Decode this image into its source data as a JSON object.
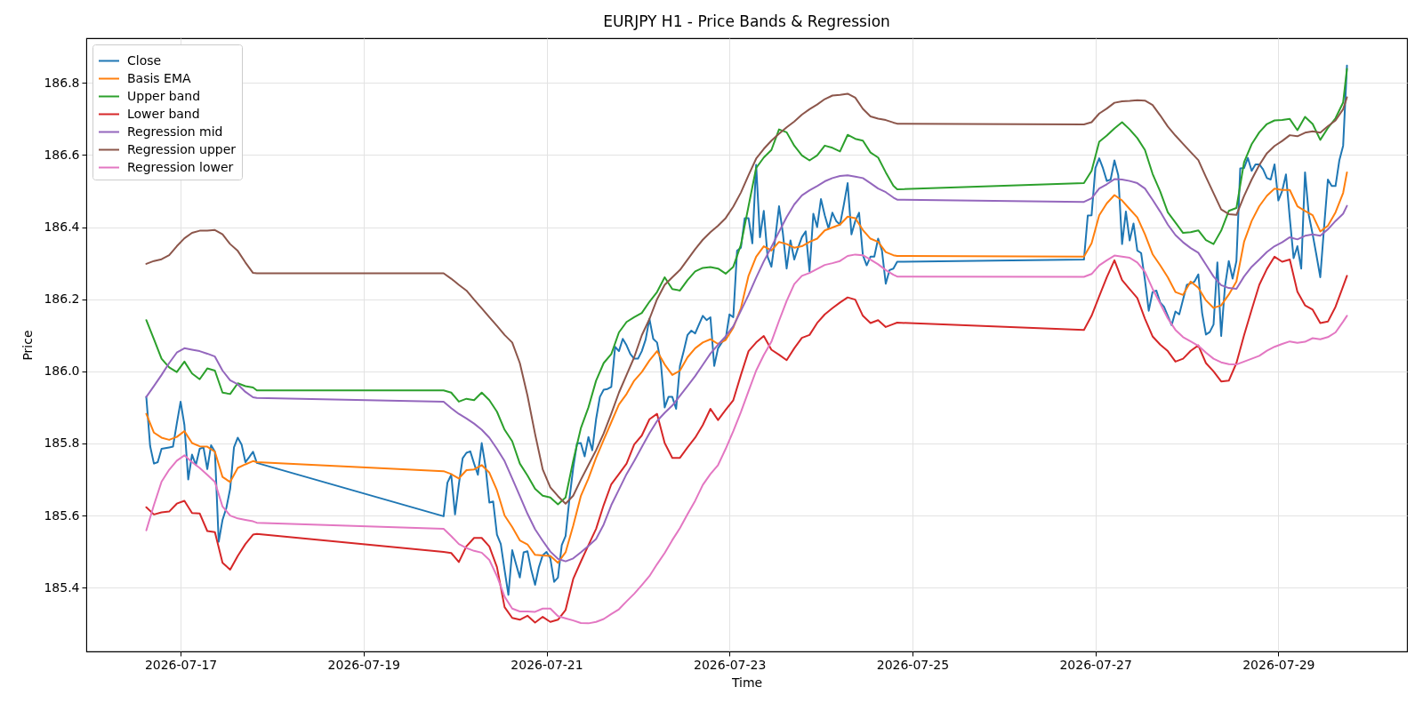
{
  "chart_data": {
    "type": "line",
    "title": "EURJPY H1 - Price Bands & Regression",
    "xlabel": "Time",
    "ylabel": "Price",
    "xlim": [
      "2026-07-15T23:15",
      "2026-07-30T09:45"
    ],
    "ylim": [
      185.223,
      186.924
    ],
    "xticks": [
      "2026-07-17",
      "2026-07-19",
      "2026-07-21",
      "2026-07-23",
      "2026-07-25",
      "2026-07-27",
      "2026-07-29"
    ],
    "yticks": [
      185.4,
      185.6,
      185.8,
      {
        "value": 186.0,
        "label": "186.0"
      },
      186.2,
      186.4,
      186.6,
      186.8
    ],
    "grid": true,
    "legend": "top left",
    "x": [
      "2026-07-16T15:00",
      "2026-07-16T17:00",
      "2026-07-16T19:00",
      "2026-07-16T21:00",
      "2026-07-16T23:00",
      "2026-07-17T01:00",
      "2026-07-17T03:00",
      "2026-07-17T05:00",
      "2026-07-17T07:00",
      "2026-07-17T09:00",
      "2026-07-17T11:00",
      "2026-07-17T13:00",
      "2026-07-17T15:00",
      "2026-07-17T17:00",
      "2026-07-17T19:00",
      "2026-07-17T20:00",
      "2026-07-19T21:00",
      "2026-07-19T23:00",
      "2026-07-20T01:00",
      "2026-07-20T03:00",
      "2026-07-20T05:00",
      "2026-07-20T07:00",
      "2026-07-20T09:00",
      "2026-07-20T11:00",
      "2026-07-20T13:00",
      "2026-07-20T15:00",
      "2026-07-20T17:00",
      "2026-07-20T19:00",
      "2026-07-20T21:00",
      "2026-07-20T23:00",
      "2026-07-21T01:00",
      "2026-07-21T03:00",
      "2026-07-21T05:00",
      "2026-07-21T07:00",
      "2026-07-21T09:00",
      "2026-07-21T11:00",
      "2026-07-21T13:00",
      "2026-07-21T15:00",
      "2026-07-21T17:00",
      "2026-07-21T19:00",
      "2026-07-21T21:00",
      "2026-07-21T23:00",
      "2026-07-22T01:00",
      "2026-07-22T03:00",
      "2026-07-22T05:00",
      "2026-07-22T07:00",
      "2026-07-22T09:00",
      "2026-07-22T11:00",
      "2026-07-22T13:00",
      "2026-07-22T15:00",
      "2026-07-22T17:00",
      "2026-07-22T19:00",
      "2026-07-22T21:00",
      "2026-07-22T23:00",
      "2026-07-23T01:00",
      "2026-07-23T03:00",
      "2026-07-23T05:00",
      "2026-07-23T07:00",
      "2026-07-23T09:00",
      "2026-07-23T11:00",
      "2026-07-23T13:00",
      "2026-07-23T15:00",
      "2026-07-23T17:00",
      "2026-07-23T19:00",
      "2026-07-23T21:00",
      "2026-07-23T23:00",
      "2026-07-24T01:00",
      "2026-07-24T03:00",
      "2026-07-24T05:00",
      "2026-07-24T07:00",
      "2026-07-24T09:00",
      "2026-07-24T11:00",
      "2026-07-24T13:00",
      "2026-07-24T15:00",
      "2026-07-24T17:00",
      "2026-07-24T19:00",
      "2026-07-24T20:00",
      "2026-07-26T21:00",
      "2026-07-26T23:00",
      "2026-07-27T01:00",
      "2026-07-27T03:00",
      "2026-07-27T05:00",
      "2026-07-27T07:00",
      "2026-07-27T09:00",
      "2026-07-27T11:00",
      "2026-07-27T13:00",
      "2026-07-27T15:00",
      "2026-07-27T17:00",
      "2026-07-27T19:00",
      "2026-07-27T21:00",
      "2026-07-27T23:00",
      "2026-07-28T01:00",
      "2026-07-28T03:00",
      "2026-07-28T05:00",
      "2026-07-28T07:00",
      "2026-07-28T09:00",
      "2026-07-28T11:00",
      "2026-07-28T13:00",
      "2026-07-28T15:00",
      "2026-07-28T17:00",
      "2026-07-28T19:00",
      "2026-07-28T21:00",
      "2026-07-28T23:00",
      "2026-07-29T01:00",
      "2026-07-29T03:00",
      "2026-07-29T05:00",
      "2026-07-29T07:00",
      "2026-07-29T09:00",
      "2026-07-29T11:00",
      "2026-07-29T13:00",
      "2026-07-29T15:00",
      "2026-07-29T17:00",
      "2026-07-29T18:00"
    ],
    "series": [
      {
        "name": "Close",
        "color": "#1f77b4",
        "x": [
          "2026-07-16T15:00",
          "2026-07-16T16:00",
          "2026-07-16T17:00",
          "2026-07-16T18:00",
          "2026-07-16T19:00",
          "2026-07-16T20:00",
          "2026-07-16T21:00",
          "2026-07-16T22:00",
          "2026-07-16T23:00",
          "2026-07-17T00:00",
          "2026-07-17T01:00",
          "2026-07-17T02:00",
          "2026-07-17T03:00",
          "2026-07-17T04:00",
          "2026-07-17T05:00",
          "2026-07-17T06:00",
          "2026-07-17T07:00",
          "2026-07-17T08:00",
          "2026-07-17T09:00",
          "2026-07-17T10:00",
          "2026-07-17T11:00",
          "2026-07-17T12:00",
          "2026-07-17T13:00",
          "2026-07-17T14:00",
          "2026-07-17T15:00",
          "2026-07-17T16:00",
          "2026-07-17T17:00",
          "2026-07-17T18:00",
          "2026-07-17T19:00",
          "2026-07-17T20:00",
          "2026-07-19T21:00",
          "2026-07-19T22:00",
          "2026-07-19T23:00",
          "2026-07-20T00:00",
          "2026-07-20T01:00",
          "2026-07-20T02:00",
          "2026-07-20T03:00",
          "2026-07-20T04:00",
          "2026-07-20T05:00",
          "2026-07-20T06:00",
          "2026-07-20T07:00",
          "2026-07-20T08:00",
          "2026-07-20T09:00",
          "2026-07-20T10:00",
          "2026-07-20T11:00",
          "2026-07-20T12:00",
          "2026-07-20T13:00",
          "2026-07-20T14:00",
          "2026-07-20T15:00",
          "2026-07-20T16:00",
          "2026-07-20T17:00",
          "2026-07-20T18:00",
          "2026-07-20T19:00",
          "2026-07-20T20:00",
          "2026-07-20T21:00",
          "2026-07-20T22:00",
          "2026-07-20T23:00",
          "2026-07-21T00:00",
          "2026-07-21T01:00",
          "2026-07-21T02:00",
          "2026-07-21T03:00",
          "2026-07-21T04:00",
          "2026-07-21T05:00",
          "2026-07-21T06:00",
          "2026-07-21T07:00",
          "2026-07-21T08:00",
          "2026-07-21T09:00",
          "2026-07-21T10:00",
          "2026-07-21T11:00",
          "2026-07-21T12:00",
          "2026-07-21T13:00",
          "2026-07-21T14:00",
          "2026-07-21T15:00",
          "2026-07-21T16:00",
          "2026-07-21T17:00",
          "2026-07-21T18:00",
          "2026-07-21T19:00",
          "2026-07-21T20:00",
          "2026-07-21T21:00",
          "2026-07-21T22:00",
          "2026-07-21T23:00",
          "2026-07-22T00:00",
          "2026-07-22T01:00",
          "2026-07-22T02:00",
          "2026-07-22T03:00",
          "2026-07-22T04:00",
          "2026-07-22T05:00",
          "2026-07-22T06:00",
          "2026-07-22T07:00",
          "2026-07-22T08:00",
          "2026-07-22T09:00",
          "2026-07-22T10:00",
          "2026-07-22T11:00",
          "2026-07-22T12:00",
          "2026-07-22T13:00",
          "2026-07-22T14:00",
          "2026-07-22T15:00",
          "2026-07-22T16:00",
          "2026-07-22T17:00",
          "2026-07-22T18:00",
          "2026-07-22T19:00",
          "2026-07-22T20:00",
          "2026-07-22T21:00",
          "2026-07-22T22:00",
          "2026-07-22T23:00",
          "2026-07-23T00:00",
          "2026-07-23T01:00",
          "2026-07-23T02:00",
          "2026-07-23T03:00",
          "2026-07-23T04:00",
          "2026-07-23T05:00",
          "2026-07-23T06:00",
          "2026-07-23T07:00",
          "2026-07-23T08:00",
          "2026-07-23T09:00",
          "2026-07-23T10:00",
          "2026-07-23T11:00",
          "2026-07-23T12:00",
          "2026-07-23T13:00",
          "2026-07-23T14:00",
          "2026-07-23T15:00",
          "2026-07-23T16:00",
          "2026-07-23T17:00",
          "2026-07-23T18:00",
          "2026-07-23T19:00",
          "2026-07-23T20:00",
          "2026-07-23T21:00",
          "2026-07-23T22:00",
          "2026-07-23T23:00",
          "2026-07-24T00:00",
          "2026-07-24T01:00",
          "2026-07-24T02:00",
          "2026-07-24T03:00",
          "2026-07-24T04:00",
          "2026-07-24T05:00",
          "2026-07-24T06:00",
          "2026-07-24T07:00",
          "2026-07-24T08:00",
          "2026-07-24T09:00",
          "2026-07-24T10:00",
          "2026-07-24T11:00",
          "2026-07-24T12:00",
          "2026-07-24T13:00",
          "2026-07-24T14:00",
          "2026-07-24T15:00",
          "2026-07-24T16:00",
          "2026-07-24T17:00",
          "2026-07-24T18:00",
          "2026-07-24T19:00",
          "2026-07-24T20:00",
          "2026-07-26T21:00",
          "2026-07-26T22:00",
          "2026-07-26T23:00",
          "2026-07-27T00:00",
          "2026-07-27T01:00",
          "2026-07-27T02:00",
          "2026-07-27T03:00",
          "2026-07-27T04:00",
          "2026-07-27T05:00",
          "2026-07-27T06:00",
          "2026-07-27T07:00",
          "2026-07-27T08:00",
          "2026-07-27T09:00",
          "2026-07-27T10:00",
          "2026-07-27T11:00",
          "2026-07-27T12:00",
          "2026-07-27T13:00",
          "2026-07-27T14:00",
          "2026-07-27T15:00",
          "2026-07-27T16:00",
          "2026-07-27T17:00",
          "2026-07-27T18:00",
          "2026-07-27T19:00",
          "2026-07-27T20:00",
          "2026-07-27T21:00",
          "2026-07-27T22:00",
          "2026-07-27T23:00",
          "2026-07-28T00:00",
          "2026-07-28T01:00",
          "2026-07-28T02:00",
          "2026-07-28T03:00",
          "2026-07-28T04:00",
          "2026-07-28T05:00",
          "2026-07-28T06:00",
          "2026-07-28T07:00",
          "2026-07-28T08:00",
          "2026-07-28T09:00",
          "2026-07-28T10:00",
          "2026-07-28T11:00",
          "2026-07-28T12:00",
          "2026-07-28T13:00",
          "2026-07-28T14:00",
          "2026-07-28T15:00",
          "2026-07-28T16:00",
          "2026-07-28T17:00",
          "2026-07-28T18:00",
          "2026-07-28T19:00",
          "2026-07-28T20:00",
          "2026-07-28T21:00",
          "2026-07-28T22:00",
          "2026-07-28T23:00",
          "2026-07-29T00:00",
          "2026-07-29T01:00",
          "2026-07-29T02:00",
          "2026-07-29T03:00",
          "2026-07-29T04:00",
          "2026-07-29T05:00",
          "2026-07-29T06:00",
          "2026-07-29T07:00",
          "2026-07-29T08:00",
          "2026-07-29T09:00",
          "2026-07-29T10:00",
          "2026-07-29T11:00",
          "2026-07-29T12:00",
          "2026-07-29T13:00",
          "2026-07-29T14:00",
          "2026-07-29T15:00",
          "2026-07-29T16:00",
          "2026-07-29T17:00",
          "2026-07-29T18:00"
        ],
        "values": [
          185.929,
          185.793,
          185.744,
          185.748,
          185.785,
          185.787,
          185.789,
          185.791,
          185.855,
          185.916,
          185.851,
          185.7,
          185.769,
          185.74,
          185.785,
          185.789,
          185.729,
          185.795,
          185.777,
          185.527,
          185.588,
          185.621,
          185.674,
          185.789,
          185.816,
          185.797,
          185.748,
          185.762,
          185.777,
          185.746,
          185.598,
          185.691,
          185.713,
          185.603,
          185.687,
          185.759,
          185.774,
          185.778,
          185.744,
          185.713,
          185.801,
          185.736,
          185.636,
          185.639,
          185.547,
          185.521,
          185.449,
          185.38,
          185.504,
          185.465,
          185.428,
          185.498,
          185.501,
          185.449,
          185.408,
          185.457,
          185.49,
          185.499,
          185.481,
          185.416,
          185.428,
          185.518,
          185.543,
          185.645,
          185.732,
          185.8,
          185.801,
          185.764,
          185.818,
          185.781,
          185.867,
          185.929,
          185.949,
          185.951,
          185.957,
          186.068,
          186.056,
          186.09,
          186.072,
          186.048,
          186.035,
          186.035,
          186.056,
          186.088,
          186.146,
          186.09,
          186.08,
          186.023,
          185.9,
          185.929,
          185.929,
          185.896,
          186.015,
          186.056,
          186.101,
          186.113,
          186.105,
          186.13,
          186.154,
          186.142,
          186.15,
          186.015,
          186.064,
          186.08,
          186.09,
          186.158,
          186.15,
          186.335,
          186.343,
          186.425,
          186.425,
          186.355,
          186.573,
          186.372,
          186.445,
          186.318,
          186.29,
          186.368,
          186.458,
          186.384,
          186.285,
          186.363,
          186.31,
          186.343,
          186.372,
          186.388,
          186.277,
          186.437,
          186.4,
          186.478,
          186.433,
          186.396,
          186.44,
          186.417,
          186.407,
          186.462,
          186.522,
          186.38,
          186.417,
          186.44,
          186.322,
          186.294,
          186.318,
          186.318,
          186.368,
          186.335,
          186.243,
          186.281,
          186.285,
          186.304,
          186.31,
          186.432,
          186.433,
          186.564,
          186.591,
          186.563,
          186.528,
          186.532,
          186.585,
          186.544,
          186.353,
          186.443,
          186.363,
          186.41,
          186.335,
          186.328,
          186.253,
          186.168,
          186.22,
          186.224,
          186.191,
          186.179,
          186.154,
          186.128,
          186.166,
          186.158,
          186.199,
          186.24,
          186.244,
          186.249,
          186.269,
          186.162,
          186.102,
          186.109,
          186.13,
          186.302,
          186.098,
          186.236,
          186.306,
          186.257,
          186.306,
          186.563,
          186.564,
          186.592,
          186.556,
          186.574,
          186.574,
          186.56,
          186.536,
          186.532,
          186.574,
          186.474,
          186.5,
          186.546,
          186.425,
          186.314,
          186.347,
          186.285,
          186.552,
          186.433,
          186.38,
          186.322,
          186.261,
          186.4,
          186.532,
          186.514,
          186.514,
          186.585,
          186.626,
          186.848
        ]
      },
      {
        "name": "Basis EMA",
        "color": "#ff7f0e",
        "values": [
          185.882,
          185.83,
          185.816,
          185.81,
          185.818,
          185.834,
          185.801,
          185.792,
          185.791,
          185.777,
          185.707,
          185.693,
          185.732,
          185.742,
          185.751,
          185.748,
          185.723,
          185.715,
          185.703,
          185.726,
          185.728,
          185.74,
          185.719,
          185.67,
          185.6,
          185.568,
          185.531,
          185.52,
          185.491,
          185.489,
          185.488,
          185.469,
          185.498,
          185.572,
          185.654,
          185.703,
          185.76,
          185.81,
          185.859,
          185.908,
          185.937,
          185.974,
          185.998,
          186.03,
          186.056,
          186.019,
          185.99,
          186.002,
          186.039,
          186.064,
          186.08,
          186.089,
          186.076,
          186.087,
          186.121,
          186.175,
          186.265,
          186.318,
          186.347,
          186.335,
          186.359,
          186.353,
          186.343,
          186.347,
          186.359,
          186.368,
          186.391,
          186.399,
          186.407,
          186.429,
          186.425,
          186.392,
          186.368,
          186.359,
          186.331,
          186.322,
          186.32,
          186.318,
          186.355,
          186.433,
          186.466,
          186.489,
          186.474,
          186.45,
          186.427,
          186.38,
          186.325,
          186.294,
          186.261,
          186.22,
          186.212,
          186.249,
          186.232,
          186.197,
          186.176,
          186.183,
          186.213,
          186.249,
          186.359,
          186.417,
          186.458,
          186.487,
          186.507,
          186.503,
          186.503,
          186.458,
          186.445,
          186.433,
          186.388,
          186.404,
          186.441,
          186.495,
          186.552
        ]
      },
      {
        "name": "Upper band",
        "color": "#2ca02c",
        "values": [
          186.142,
          186.089,
          186.035,
          186.011,
          185.998,
          186.027,
          185.994,
          185.978,
          186.008,
          186.002,
          185.941,
          185.937,
          185.967,
          185.959,
          185.955,
          185.947,
          185.947,
          185.941,
          185.916,
          185.924,
          185.92,
          185.941,
          185.92,
          185.888,
          185.838,
          185.806,
          185.744,
          185.711,
          185.674,
          185.655,
          185.65,
          185.631,
          185.65,
          185.752,
          185.842,
          185.9,
          185.974,
          186.023,
          186.048,
          186.108,
          186.137,
          186.15,
          186.162,
          186.193,
          186.22,
          186.261,
          186.228,
          186.224,
          186.253,
          186.277,
          186.287,
          186.289,
          186.285,
          186.271,
          186.29,
          186.351,
          186.458,
          186.564,
          186.593,
          186.614,
          186.671,
          186.663,
          186.626,
          186.599,
          186.585,
          186.599,
          186.626,
          186.62,
          186.61,
          186.656,
          186.645,
          186.64,
          186.607,
          186.593,
          186.552,
          186.515,
          186.505,
          186.522,
          186.556,
          186.637,
          186.654,
          186.674,
          186.691,
          186.671,
          186.647,
          186.614,
          186.548,
          186.499,
          186.441,
          186.413,
          186.384,
          186.386,
          186.391,
          186.364,
          186.353,
          186.39,
          186.445,
          186.453,
          186.58,
          186.63,
          186.663,
          186.686,
          186.696,
          186.697,
          186.7,
          186.669,
          186.706,
          186.686,
          186.642,
          186.675,
          186.702,
          186.746,
          186.839
        ]
      },
      {
        "name": "Lower band",
        "color": "#d62728",
        "values": [
          185.623,
          185.603,
          185.609,
          185.611,
          185.633,
          185.641,
          185.607,
          185.606,
          185.557,
          185.554,
          185.469,
          185.45,
          185.488,
          185.521,
          185.547,
          185.549,
          185.499,
          185.496,
          185.471,
          185.515,
          185.538,
          185.538,
          185.514,
          185.457,
          185.346,
          185.316,
          185.311,
          185.322,
          185.303,
          185.319,
          185.305,
          185.311,
          185.338,
          185.424,
          185.472,
          185.518,
          185.563,
          185.629,
          185.687,
          185.715,
          185.744,
          185.797,
          185.822,
          185.867,
          185.882,
          185.801,
          185.76,
          185.76,
          185.789,
          185.816,
          185.851,
          185.896,
          185.865,
          185.893,
          185.92,
          185.99,
          186.056,
          186.08,
          186.098,
          186.06,
          186.046,
          186.031,
          186.064,
          186.093,
          186.101,
          186.134,
          186.158,
          186.175,
          186.191,
          186.205,
          186.199,
          186.154,
          186.134,
          186.142,
          186.123,
          186.131,
          186.135,
          186.115,
          186.154,
          186.208,
          186.261,
          186.308,
          186.253,
          186.228,
          186.203,
          186.146,
          186.097,
          186.074,
          186.056,
          186.027,
          186.035,
          186.057,
          186.072,
          186.023,
          186.0,
          185.972,
          185.974,
          186.023,
          186.1,
          186.171,
          186.24,
          186.284,
          186.318,
          186.304,
          186.31,
          186.221,
          186.183,
          186.171,
          186.134,
          186.138,
          186.179,
          186.236,
          186.265
        ]
      },
      {
        "name": "Regression mid",
        "color": "#9467bd",
        "values": [
          185.929,
          185.959,
          185.99,
          186.023,
          186.052,
          186.064,
          186.06,
          186.056,
          186.049,
          186.041,
          186.002,
          185.975,
          185.964,
          185.943,
          185.928,
          185.926,
          185.916,
          185.898,
          185.882,
          185.869,
          185.855,
          185.838,
          185.816,
          185.785,
          185.751,
          185.703,
          185.654,
          185.605,
          185.562,
          185.53,
          185.5,
          185.48,
          185.473,
          185.481,
          185.498,
          185.516,
          185.535,
          185.575,
          185.629,
          185.672,
          185.715,
          185.751,
          185.79,
          185.828,
          185.862,
          185.885,
          185.905,
          185.932,
          185.959,
          185.987,
          186.018,
          186.049,
          186.074,
          186.097,
          186.125,
          186.168,
          186.212,
          186.26,
          186.305,
          186.345,
          186.387,
          186.428,
          186.463,
          186.488,
          186.502,
          186.514,
          186.527,
          186.536,
          186.542,
          186.544,
          186.54,
          186.536,
          186.522,
          186.507,
          186.497,
          186.482,
          186.476,
          186.47,
          186.48,
          186.507,
          186.519,
          186.533,
          186.532,
          186.528,
          186.522,
          186.507,
          186.476,
          186.443,
          186.407,
          186.378,
          186.358,
          186.342,
          186.329,
          186.296,
          186.263,
          186.239,
          186.231,
          186.229,
          186.263,
          186.29,
          186.31,
          186.331,
          186.347,
          186.358,
          186.372,
          186.366,
          186.376,
          186.38,
          186.376,
          186.394,
          186.417,
          186.437,
          186.459
        ]
      },
      {
        "name": "Regression upper",
        "color": "#8c564b",
        "values": [
          186.298,
          186.306,
          186.311,
          186.322,
          186.347,
          186.369,
          186.384,
          186.39,
          186.39,
          186.392,
          186.38,
          186.353,
          186.334,
          186.302,
          186.273,
          186.272,
          186.272,
          186.257,
          186.24,
          186.224,
          186.199,
          186.175,
          186.15,
          186.126,
          186.101,
          186.08,
          186.023,
          185.933,
          185.826,
          185.728,
          185.678,
          185.654,
          185.633,
          185.655,
          185.699,
          185.74,
          185.781,
          185.828,
          185.883,
          185.941,
          185.99,
          186.039,
          186.1,
          186.145,
          186.2,
          186.24,
          186.261,
          186.281,
          186.31,
          186.339,
          186.365,
          186.386,
          186.404,
          186.425,
          186.457,
          186.496,
          186.544,
          186.59,
          186.617,
          186.64,
          186.659,
          186.677,
          186.693,
          186.712,
          186.727,
          186.74,
          186.755,
          186.765,
          186.767,
          186.77,
          186.759,
          186.728,
          186.707,
          186.701,
          186.697,
          186.69,
          186.687,
          186.685,
          186.691,
          186.715,
          186.729,
          186.745,
          186.749,
          186.75,
          186.752,
          186.751,
          186.739,
          186.71,
          186.679,
          186.654,
          186.631,
          186.608,
          186.586,
          186.539,
          186.494,
          186.449,
          186.436,
          186.434,
          186.486,
          186.532,
          186.572,
          186.605,
          186.625,
          186.639,
          186.655,
          186.652,
          186.662,
          186.666,
          186.662,
          186.68,
          186.696,
          186.727,
          186.76
        ]
      },
      {
        "name": "Regression lower",
        "color": "#e377c2",
        "values": [
          185.559,
          185.629,
          185.694,
          185.727,
          185.752,
          185.767,
          185.748,
          185.732,
          185.713,
          185.693,
          185.625,
          185.6,
          185.592,
          185.588,
          185.584,
          185.58,
          185.563,
          185.543,
          185.521,
          185.51,
          185.502,
          185.497,
          185.477,
          185.432,
          185.375,
          185.342,
          185.334,
          185.334,
          185.333,
          185.342,
          185.342,
          185.321,
          185.315,
          185.309,
          185.302,
          185.301,
          185.305,
          185.313,
          185.327,
          185.34,
          185.362,
          185.383,
          185.407,
          185.432,
          185.465,
          185.496,
          185.532,
          185.565,
          185.604,
          185.641,
          185.685,
          185.715,
          185.74,
          185.785,
          185.834,
          185.887,
          185.945,
          186.002,
          186.045,
          186.082,
          186.14,
          186.195,
          186.242,
          186.265,
          186.273,
          186.284,
          186.295,
          186.3,
          186.306,
          186.32,
          186.324,
          186.322,
          186.31,
          186.297,
          186.281,
          186.268,
          186.263,
          186.262,
          186.27,
          186.294,
          186.308,
          186.321,
          186.318,
          186.315,
          186.302,
          186.276,
          186.229,
          186.188,
          186.147,
          186.115,
          186.095,
          186.083,
          186.071,
          186.052,
          186.035,
          186.025,
          186.02,
          186.019,
          186.027,
          186.035,
          186.043,
          186.057,
          186.068,
          186.076,
          186.083,
          186.079,
          186.082,
          186.092,
          186.089,
          186.095,
          186.108,
          186.138,
          186.154
        ]
      }
    ]
  }
}
